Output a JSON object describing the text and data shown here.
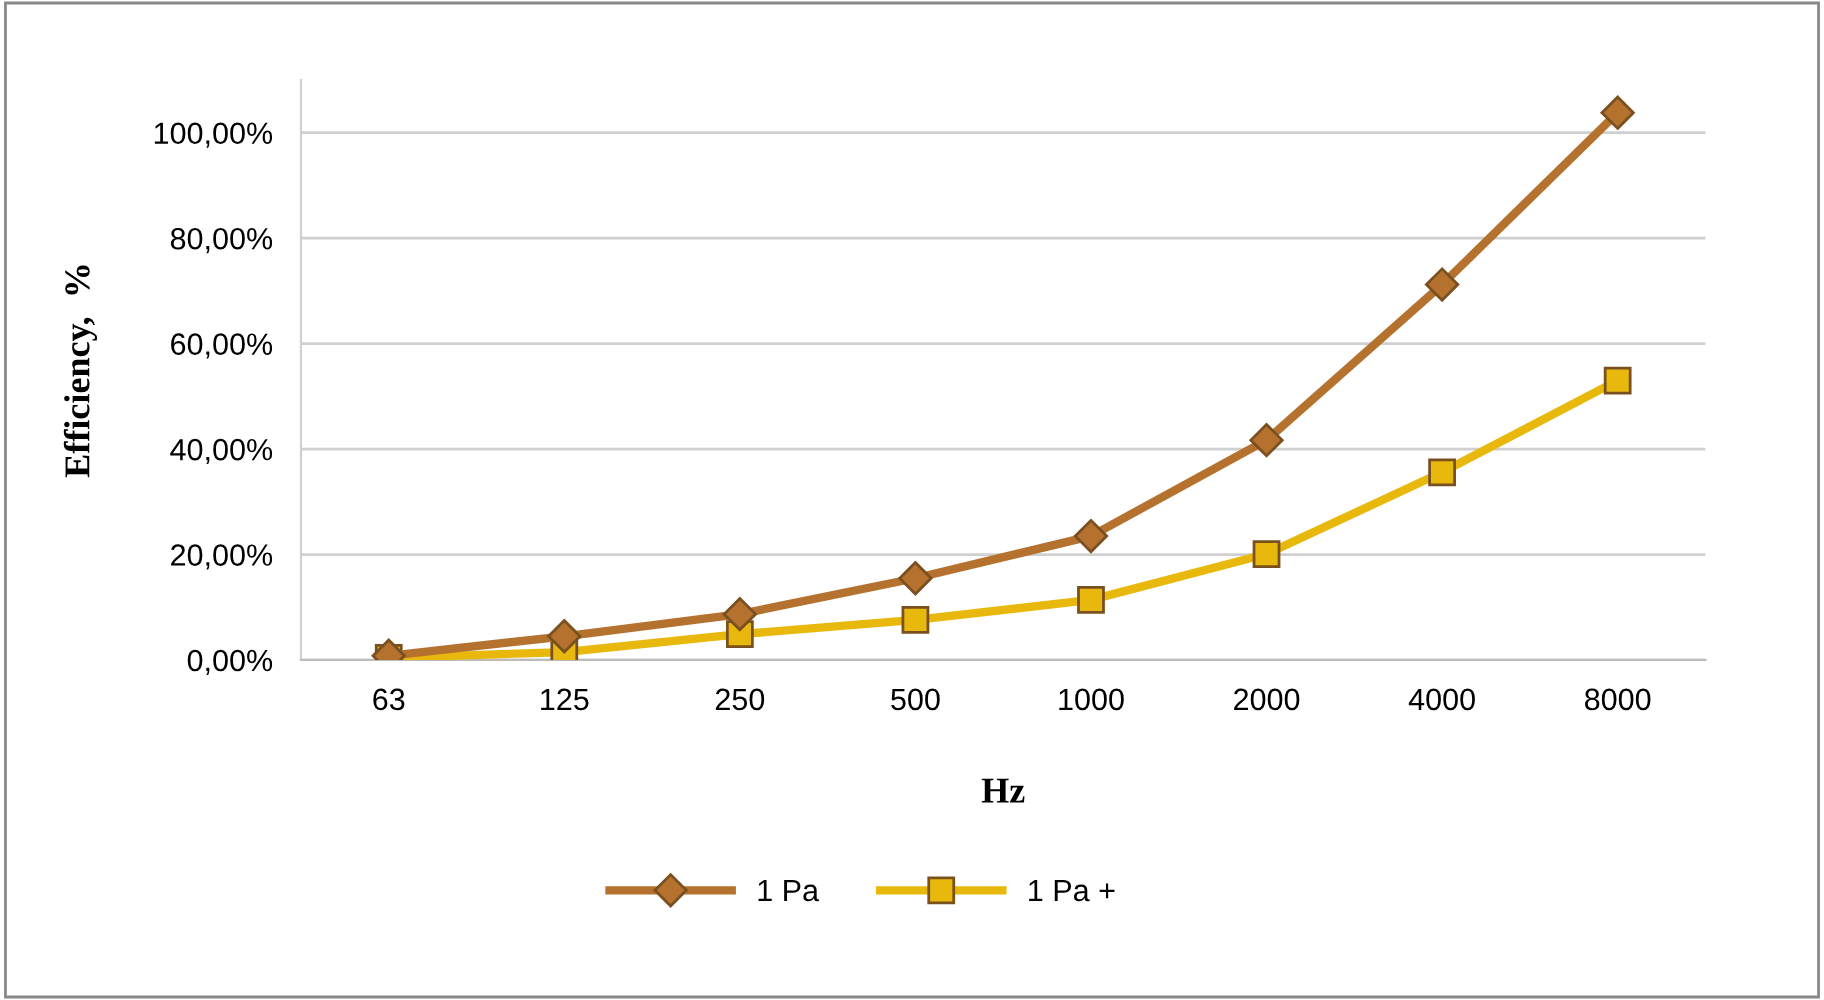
{
  "chart_data": {
    "type": "line",
    "xlabel": "Hz",
    "ylabel": "Efficiency,  %",
    "categories": [
      "63",
      "125",
      "250",
      "500",
      "1000",
      "2000",
      "4000",
      "8000"
    ],
    "series": [
      {
        "name": "1 Pa",
        "color": "#b5722e",
        "marker": "diamond",
        "values": [
          0.8,
          4.5,
          8.7,
          15.5,
          23.5,
          41.7,
          71.2,
          103.8
        ]
      },
      {
        "name": "1 Pa +",
        "color": "#e8b90c",
        "marker": "square",
        "values": [
          0.4,
          1.5,
          4.9,
          7.6,
          11.4,
          20.1,
          35.6,
          53.0
        ]
      }
    ],
    "ylim": [
      0,
      110
    ],
    "yticks": [
      {
        "value": 0,
        "label": "0,00%"
      },
      {
        "value": 20,
        "label": "20,00%"
      },
      {
        "value": 40,
        "label": "40,00%"
      },
      {
        "value": 60,
        "label": "60,00%"
      },
      {
        "value": 80,
        "label": "80,00%"
      },
      {
        "value": 100,
        "label": "100,00%"
      }
    ],
    "grid": "y",
    "legend": "bottom",
    "line_style": "solid"
  }
}
